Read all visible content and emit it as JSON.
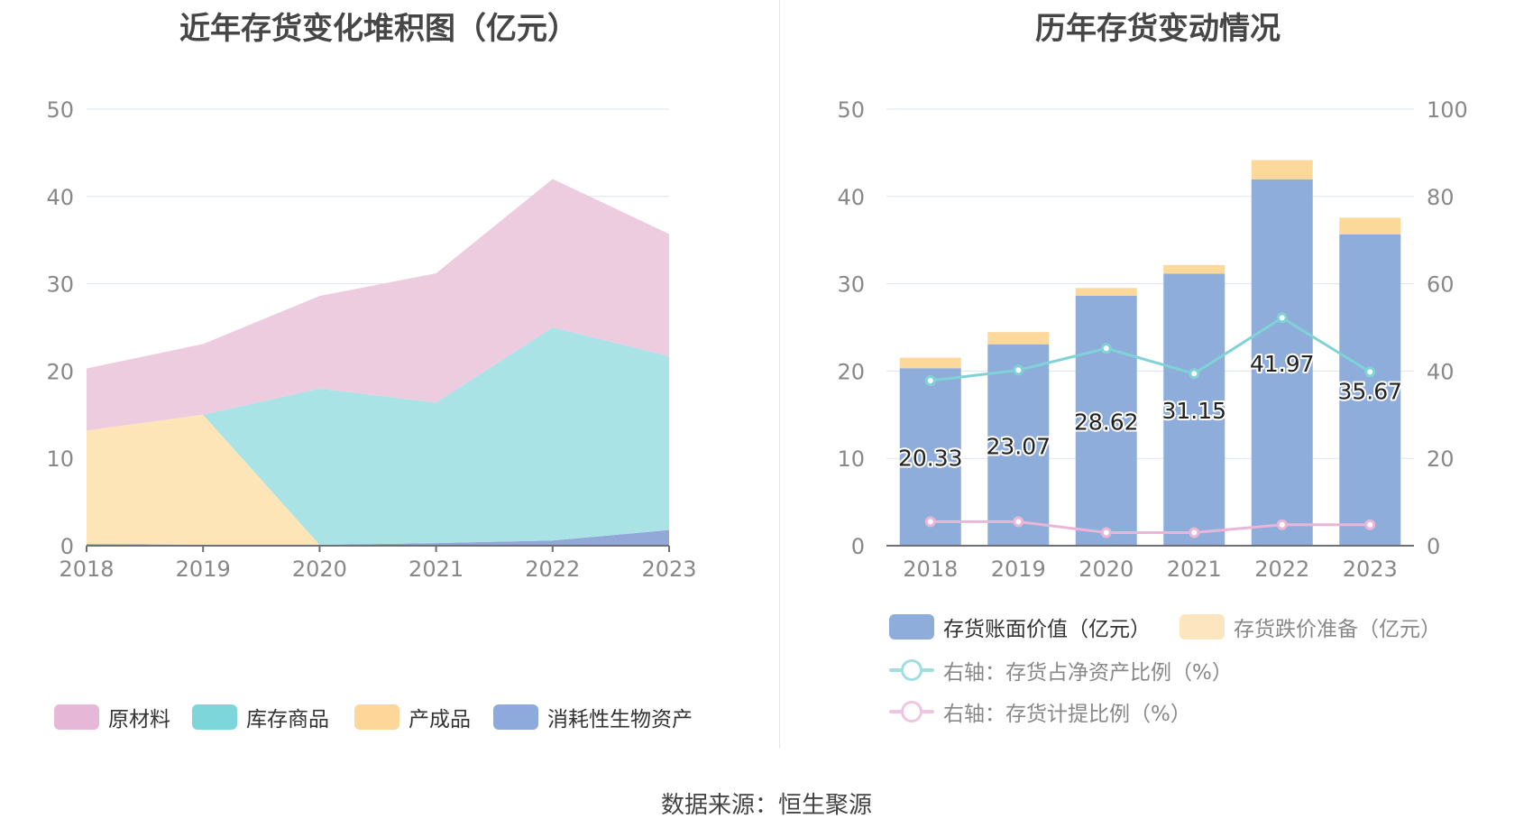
{
  "source_label": "数据来源：恒生聚源",
  "chart_data": [
    {
      "type": "area",
      "title": "近年存货变化堆积图（亿元）",
      "categories": [
        "2018",
        "2019",
        "2020",
        "2021",
        "2022",
        "2023"
      ],
      "ylim": [
        0,
        50
      ],
      "yticks": [
        "0",
        "10",
        "20",
        "30",
        "40",
        "50"
      ],
      "stacked": true,
      "grid": true,
      "legend_position": "bottom",
      "series": [
        {
          "name": "消耗性生物资产",
          "color": "#91a8d9",
          "values": [
            0.2,
            0.1,
            0.1,
            0.3,
            0.6,
            1.8
          ]
        },
        {
          "name": "产成品",
          "color": "#fde5b7",
          "values": [
            13.0,
            14.9,
            0.0,
            0.0,
            0.0,
            0.0
          ]
        },
        {
          "name": "库存商品",
          "color": "#aae3e5",
          "values": [
            0.0,
            0.0,
            17.9,
            16.1,
            24.4,
            19.9
          ]
        },
        {
          "name": "原材料",
          "color": "#eeccdf",
          "values": [
            7.1,
            8.1,
            10.6,
            14.8,
            17.0,
            14.0
          ]
        }
      ],
      "legend": [
        {
          "name": "原材料",
          "color": "#e6b7d6"
        },
        {
          "name": "库存商品",
          "color": "#7dd7da"
        },
        {
          "name": "产成品",
          "color": "#fdd699"
        },
        {
          "name": "消耗性生物资产",
          "color": "#8ea9db"
        }
      ]
    },
    {
      "type": "bar",
      "title": "历年存货变动情况",
      "categories": [
        "2018",
        "2019",
        "2020",
        "2021",
        "2022",
        "2023"
      ],
      "ylim": [
        0,
        50
      ],
      "yticks": [
        "0",
        "10",
        "20",
        "30",
        "40",
        "50"
      ],
      "y2lim": [
        0,
        100
      ],
      "y2ticks": [
        "0",
        "20",
        "40",
        "60",
        "80",
        "100"
      ],
      "grid": true,
      "legend_position": "bottom",
      "series": [
        {
          "name": "存货账面价值（亿元）",
          "color": "#8eaddb",
          "values": [
            20.33,
            23.07,
            28.62,
            31.15,
            41.97,
            35.67
          ],
          "labels": [
            "20.33",
            "23.07",
            "28.62",
            "31.15",
            "41.97",
            "35.67"
          ]
        },
        {
          "name": "存货跌价准备（亿元）",
          "color": "#fcd99b",
          "values": [
            1.2,
            1.4,
            0.9,
            1.0,
            2.2,
            1.9
          ]
        },
        {
          "name": "右轴：存货占净资产比例（%）",
          "color": "#7fd3d6",
          "axis": "right",
          "values": [
            37.8,
            40.2,
            45.2,
            39.4,
            52.2,
            39.8
          ]
        },
        {
          "name": "右轴：存货计提比例（%）",
          "color": "#e9b6d8",
          "axis": "right",
          "values": [
            5.5,
            5.5,
            3.0,
            3.0,
            4.8,
            4.8
          ]
        }
      ],
      "legend": [
        {
          "name": "存货账面价值（亿元）",
          "color": "#8eaddb",
          "shape": "rect"
        },
        {
          "name": "存货跌价准备（亿元）",
          "color": "#fde5bf",
          "shape": "rect"
        },
        {
          "name": "右轴：存货占净资产比例（%）",
          "color": "#9fdfe1",
          "shape": "line"
        },
        {
          "name": "右轴：存货计提比例（%）",
          "color": "#efc5e0",
          "shape": "line"
        }
      ]
    }
  ]
}
